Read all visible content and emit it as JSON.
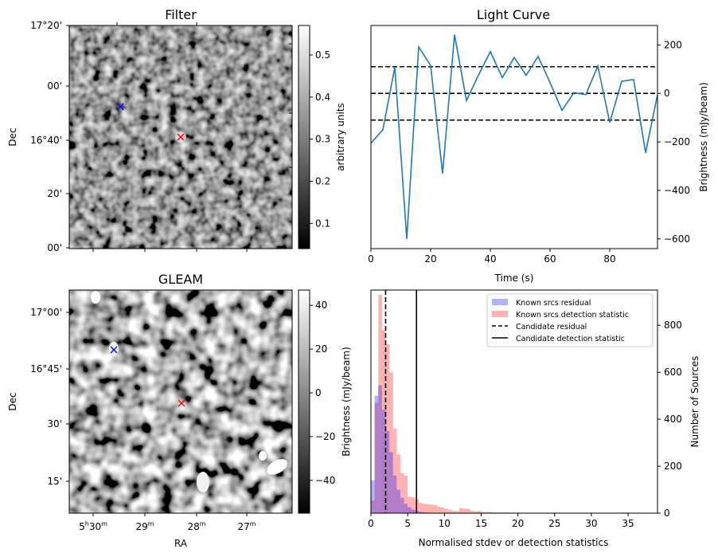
{
  "chart_data": [
    {
      "id": "filter",
      "type": "heatmap",
      "title": "Filter",
      "ylabel": "Dec",
      "y_tick_labels": [
        "17°20'",
        "00'",
        "16°40'",
        "20'",
        "00'"
      ],
      "colorbar": {
        "label": "arbitrary units",
        "range": [
          0.04,
          0.57
        ],
        "ticks": [
          0.1,
          0.2,
          0.3,
          0.4,
          0.5
        ],
        "tick_labels": [
          "0.1",
          "0.2",
          "0.3",
          "0.4",
          "0.5"
        ]
      },
      "markers": [
        {
          "name": "candidate",
          "symbol": "x",
          "color": "#0000ff"
        },
        {
          "name": "reference",
          "symbol": "x",
          "color": "#ff0000"
        }
      ]
    },
    {
      "id": "lightcurve",
      "type": "line",
      "title": "Light Curve",
      "xlabel": "Time (s)",
      "ylabel": "Brightness (mJy/beam)",
      "xlim": [
        0,
        96
      ],
      "ylim": [
        -640,
        280
      ],
      "x_ticks": [
        0,
        20,
        40,
        60,
        80
      ],
      "x_tick_labels": [
        "0",
        "20",
        "40",
        "60",
        "80"
      ],
      "y_ticks": [
        200,
        0,
        -200,
        -400,
        -600
      ],
      "y_tick_labels": [
        "200",
        "0",
        "−200",
        "−400",
        "−600"
      ],
      "series": [
        {
          "name": "light curve",
          "color": "#1f77b4",
          "x": [
            0,
            4,
            8,
            12,
            16,
            20,
            24,
            28,
            32,
            36,
            40,
            44,
            48,
            52,
            56,
            60,
            64,
            68,
            72,
            76,
            80,
            84,
            88,
            92,
            96
          ],
          "y": [
            -205,
            -150,
            108,
            -600,
            192,
            115,
            -330,
            242,
            -30,
            75,
            172,
            65,
            148,
            75,
            152,
            45,
            -70,
            3,
            -5,
            113,
            -120,
            50,
            57,
            -245,
            -5
          ]
        }
      ],
      "hlines": [
        {
          "y": 110,
          "style": "dashed",
          "color": "#000000"
        },
        {
          "y": 0,
          "style": "dashed",
          "color": "#000000"
        },
        {
          "y": -110,
          "style": "dashed",
          "color": "#000000"
        }
      ]
    },
    {
      "id": "gleam",
      "type": "heatmap",
      "title": "GLEAM",
      "xlabel": "RA",
      "ylabel": "Dec",
      "x_tick_labels": [
        {
          "h": "5",
          "m": "30"
        },
        {
          "h": "",
          "m": "29"
        },
        {
          "h": "",
          "m": "28"
        },
        {
          "h": "",
          "m": "27"
        }
      ],
      "y_tick_labels": [
        "17°00'",
        "16°45'",
        "30'",
        "15'"
      ],
      "colorbar": {
        "label": "Brightness (mJy/beam)",
        "range": [
          -55,
          47
        ],
        "ticks": [
          40,
          20,
          0,
          -20,
          -40
        ],
        "tick_labels": [
          "40",
          "20",
          "0",
          "−20",
          "−40"
        ]
      },
      "markers": [
        {
          "name": "candidate",
          "symbol": "x",
          "color": "#0000ff"
        },
        {
          "name": "reference",
          "symbol": "x",
          "color": "#ff0000"
        }
      ]
    },
    {
      "id": "histogram",
      "type": "bar",
      "xlabel": "Normalised stdev or detection statistics",
      "ylabel": "Number of Sources",
      "xlim": [
        0,
        39
      ],
      "ylim": [
        0,
        950
      ],
      "x_ticks": [
        0,
        5,
        10,
        15,
        20,
        25,
        30,
        35
      ],
      "x_tick_labels": [
        "0",
        "5",
        "10",
        "15",
        "20",
        "25",
        "30",
        "35"
      ],
      "y_ticks": [
        0,
        200,
        400,
        600,
        800
      ],
      "y_tick_labels": [
        "0",
        "200",
        "400",
        "600",
        "800"
      ],
      "bin_width": 0.5,
      "series": [
        {
          "name": "Known srcs residual",
          "color": "#0000ff",
          "alpha": 0.3,
          "x_start": 0,
          "values": [
            140,
            500,
            545,
            440,
            350,
            260,
            160,
            100,
            65,
            40,
            25,
            15,
            10,
            6,
            4,
            3,
            2,
            1
          ]
        },
        {
          "name": "Known srcs detection statistic",
          "color": "#ff0000",
          "alpha": 0.3,
          "x_start": 0,
          "values": [
            55,
            470,
            930,
            780,
            720,
            600,
            360,
            250,
            170,
            160,
            70,
            68,
            60,
            45,
            40,
            38,
            36,
            35,
            28,
            24,
            19,
            15,
            10,
            9,
            22,
            20,
            18,
            10,
            8,
            9,
            5,
            6,
            5,
            4,
            3,
            3,
            3,
            3,
            2,
            2,
            2,
            2,
            2,
            2,
            2,
            2,
            2,
            2,
            2,
            2,
            2,
            2,
            2,
            2,
            2,
            2,
            2,
            2,
            2,
            2,
            2,
            2,
            2,
            2,
            2,
            2,
            2,
            2,
            3,
            3,
            2,
            2,
            2,
            2
          ]
        }
      ],
      "vlines": [
        {
          "name": "Candidate residual",
          "x": 2.0,
          "style": "dashed",
          "color": "#000000"
        },
        {
          "name": "Candidate detection statistic",
          "x": 6.2,
          "style": "solid",
          "color": "#000000"
        }
      ],
      "legend": {
        "position": "top-right",
        "entries": [
          "Known srcs residual",
          "Known srcs detection statistic",
          "Candidate residual",
          "Candidate detection statistic"
        ]
      }
    }
  ]
}
